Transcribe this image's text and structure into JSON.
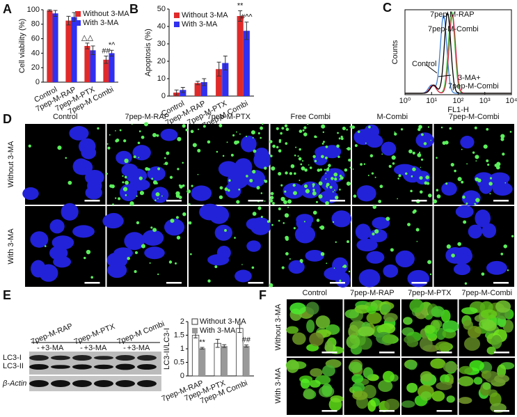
{
  "chart_data": [
    {
      "type": "bar",
      "label": "A",
      "ylabel": "Cell viability (%)",
      "categories": [
        "Control",
        "7pep-M-RAP",
        "7pep-M-PTX",
        "7pep-M Combi"
      ],
      "series": [
        {
          "name": "Without 3-MA",
          "color": "#e02a2a",
          "values": [
            99,
            85,
            50,
            31
          ],
          "errors": [
            1,
            6,
            4,
            5
          ]
        },
        {
          "name": "With 3-MA",
          "color": "#3030f0",
          "values": [
            95,
            90,
            44,
            40
          ],
          "errors": [
            4,
            6,
            6,
            4
          ]
        }
      ],
      "annotations": [
        "△△",
        "##",
        "*^"
      ],
      "ylim": [
        0,
        100
      ],
      "yticks": [
        0,
        20,
        40,
        60,
        80,
        100
      ],
      "legend": "upper right"
    },
    {
      "type": "bar",
      "label": "B",
      "ylabel": "Apoptosis (%)",
      "categories": [
        "Control",
        "7pep-M-RAP",
        "7pep-M-PTX",
        "7pep-M Combi"
      ],
      "series": [
        {
          "name": "Without 3-MA",
          "color": "#e02a2a",
          "values": [
            2,
            7.5,
            15.5,
            46
          ],
          "errors": [
            1.5,
            1,
            4,
            3
          ]
        },
        {
          "name": "With 3-MA",
          "color": "#3030f0",
          "values": [
            3.5,
            8,
            19,
            37.5
          ],
          "errors": [
            1.5,
            2,
            4,
            5
          ]
        }
      ],
      "annotations": [
        "**",
        "#^^"
      ],
      "ylim": [
        0,
        50
      ],
      "yticks": [
        0,
        10,
        20,
        30,
        40,
        50
      ],
      "legend": "upper left"
    },
    {
      "type": "histogram",
      "label": "C",
      "xlabel": "FL1-H",
      "ylabel": "Counts",
      "xlog": true,
      "xlim": [
        1,
        10000
      ],
      "xticks": [
        {
          "value": 1,
          "label": "10⁰"
        },
        {
          "value": 10,
          "label": "10¹"
        },
        {
          "value": 100,
          "label": "10²"
        },
        {
          "value": 1000,
          "label": "10³"
        },
        {
          "value": 10000,
          "label": "10⁴"
        }
      ],
      "series": [
        {
          "name": "Control",
          "color": "#3a7fd8"
        },
        {
          "name": "7pep-M-RAP",
          "color": "#3cc83c"
        },
        {
          "name": "7pep-M-Combi",
          "color": "#e0204a"
        },
        {
          "name": "3-MA+ 7pep-M-Combi",
          "color": "#000000"
        }
      ]
    },
    {
      "type": "bar",
      "ylabel": "LC3-II/LC3-I",
      "categories": [
        "7pep-M-RAP",
        "7pep-M-PTX",
        "7pep-M Combi"
      ],
      "series": [
        {
          "name": "Without  3-MA",
          "color": "#ffffff",
          "values": [
            1.5,
            1.2,
            1.75
          ],
          "errors": [
            0.1,
            0.15,
            0.15
          ]
        },
        {
          "name": "With  3-MA",
          "color": "#999999",
          "values": [
            1.02,
            1.1,
            1.1
          ],
          "errors": [
            0.03,
            0.05,
            0.04
          ]
        }
      ],
      "annotations": [
        "**",
        "##"
      ],
      "ylim": [
        0,
        2
      ],
      "yticks": [
        0,
        0.5,
        1,
        1.5,
        2
      ],
      "legend": "upper left"
    }
  ],
  "panel_D": {
    "label": "D",
    "columns": [
      "Control",
      "7pep-M-RAP",
      "7pep-M-PTX",
      "Free Combi",
      "M-Combi",
      "7pep-M-Combi"
    ],
    "rows": [
      "Without 3-MA",
      "With 3-MA"
    ]
  },
  "panel_E": {
    "label": "E",
    "groups": [
      "7pep-M-RAP",
      "7pep-M-PTX",
      "7pep-M Combi"
    ],
    "lanes": [
      "-",
      "+3-MA",
      "-",
      "+3-MA",
      "-",
      "+3-MA"
    ],
    "bands": [
      "LC3-I",
      "LC3-II",
      "β-Actin"
    ]
  },
  "panel_F": {
    "label": "F",
    "columns": [
      "Control",
      "7pep-M-RAP",
      "7pep-M-PTX",
      "7pep-M-Combi"
    ],
    "rows": [
      "Without 3-MA",
      "With 3-MA"
    ]
  }
}
